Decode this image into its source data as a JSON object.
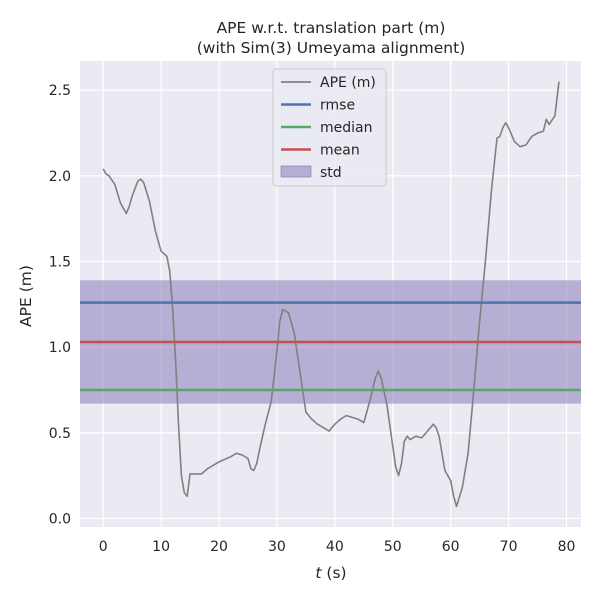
{
  "chart_data": {
    "type": "line",
    "title_line1": "APE w.r.t. translation part (m)",
    "title_line2": "(with Sim(3) Umeyama alignment)",
    "xlabel_var": "t",
    "xlabel_unit": " (s)",
    "ylabel": "APE (m)",
    "xlim": [
      -4,
      82.5
    ],
    "ylim": [
      -0.05,
      2.67
    ],
    "xticks": [
      0,
      10,
      20,
      30,
      40,
      50,
      60,
      70,
      80
    ],
    "yticks": [
      0.0,
      0.5,
      1.0,
      1.5,
      2.0,
      2.5
    ],
    "xtick_labels": [
      "0",
      "10",
      "20",
      "30",
      "40",
      "50",
      "60",
      "70",
      "80"
    ],
    "ytick_labels": [
      "0.0",
      "0.5",
      "1.0",
      "1.5",
      "2.0",
      "2.5"
    ],
    "grid": true,
    "legend_position": "top-center",
    "stats": {
      "rmse": 1.26,
      "median": 0.75,
      "mean": 1.03,
      "std_band": [
        0.67,
        1.39
      ]
    },
    "colors": {
      "ape": "#808080",
      "rmse": "#4c72b0",
      "median": "#55a868",
      "mean": "#c44e52",
      "std": "#8172b3",
      "background": "#eaeaf2",
      "grid": "#ffffff"
    },
    "legend": [
      {
        "key": "ape",
        "label": "APE (m)",
        "kind": "line"
      },
      {
        "key": "rmse",
        "label": "rmse",
        "kind": "line"
      },
      {
        "key": "median",
        "label": "median",
        "kind": "line"
      },
      {
        "key": "mean",
        "label": "mean",
        "kind": "line"
      },
      {
        "key": "std",
        "label": "std",
        "kind": "patch"
      }
    ],
    "series": [
      {
        "name": "APE (m)",
        "x": [
          0,
          0.5,
          1,
          2,
          3,
          4,
          4.5,
          5,
          6,
          6.5,
          7,
          8,
          9,
          10,
          11,
          11.5,
          12,
          12.5,
          13,
          13.5,
          14,
          14.5,
          15,
          16,
          17,
          18,
          19,
          20,
          22,
          23,
          24,
          25,
          25.5,
          26,
          26.5,
          27,
          28,
          29,
          29.5,
          30,
          30.5,
          31,
          32,
          33,
          34,
          35,
          35.5,
          36,
          37,
          38,
          39,
          40,
          41,
          42,
          43,
          44,
          45,
          46,
          47,
          47.5,
          48,
          49,
          50,
          50.5,
          51,
          51.5,
          52,
          52.5,
          53,
          54,
          55,
          56,
          57,
          57.5,
          58,
          59,
          60,
          60.5,
          61,
          62,
          63,
          64,
          65,
          66,
          67,
          68,
          68.5,
          69,
          69.5,
          70,
          71,
          72,
          73,
          74,
          75,
          76,
          76.5,
          77,
          78,
          78.7
        ],
        "values": [
          2.04,
          2.01,
          2.0,
          1.95,
          1.84,
          1.78,
          1.82,
          1.88,
          1.97,
          1.98,
          1.96,
          1.85,
          1.68,
          1.56,
          1.53,
          1.44,
          1.22,
          0.92,
          0.55,
          0.25,
          0.15,
          0.13,
          0.26,
          0.26,
          0.26,
          0.29,
          0.31,
          0.33,
          0.36,
          0.38,
          0.37,
          0.35,
          0.29,
          0.28,
          0.32,
          0.4,
          0.55,
          0.68,
          0.82,
          0.98,
          1.15,
          1.22,
          1.2,
          1.08,
          0.85,
          0.62,
          0.6,
          0.58,
          0.55,
          0.53,
          0.51,
          0.55,
          0.58,
          0.6,
          0.59,
          0.58,
          0.56,
          0.68,
          0.82,
          0.86,
          0.82,
          0.66,
          0.42,
          0.3,
          0.25,
          0.32,
          0.45,
          0.48,
          0.46,
          0.48,
          0.47,
          0.51,
          0.55,
          0.53,
          0.48,
          0.28,
          0.22,
          0.13,
          0.07,
          0.18,
          0.38,
          0.75,
          1.15,
          1.5,
          1.9,
          2.22,
          2.23,
          2.28,
          2.31,
          2.28,
          2.2,
          2.17,
          2.18,
          2.23,
          2.25,
          2.26,
          2.33,
          2.3,
          2.35,
          2.55
        ]
      }
    ]
  }
}
